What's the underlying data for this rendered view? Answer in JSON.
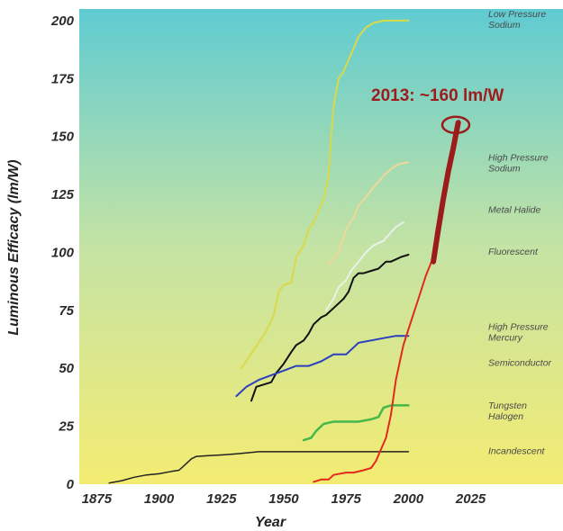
{
  "chart_data": {
    "type": "line",
    "xlabel": "Year",
    "ylabel": "Luminous Efficacy (lm/W)",
    "xlim": [
      1868,
      2062
    ],
    "ylim": [
      0,
      205
    ],
    "x_ticks": [
      1875,
      1900,
      1925,
      1950,
      1975,
      2000,
      2025
    ],
    "y_ticks": [
      0,
      25,
      50,
      75,
      100,
      125,
      150,
      175,
      200
    ],
    "background": {
      "type": "vertical-gradient",
      "top": "#5fcbd2",
      "middle": "#c4e3a4",
      "bottom": "#f4ec72"
    },
    "labels": [
      {
        "text": [
          "Low Pressure",
          "Sodium"
        ],
        "y": 200
      },
      {
        "text": [
          "High Pressure",
          "Sodium"
        ],
        "y": 138
      },
      {
        "text": [
          "Metal Halide"
        ],
        "y": 117
      },
      {
        "text": [
          "Fluorescent"
        ],
        "y": 99
      },
      {
        "text": [
          "High Pressure",
          "Mercury"
        ],
        "y": 65
      },
      {
        "text": [
          "Semiconductor"
        ],
        "y": 51
      },
      {
        "text": [
          "Tungsten",
          "Halogen"
        ],
        "y": 31
      },
      {
        "text": [
          "Incandescent"
        ],
        "y": 13
      }
    ],
    "series": [
      {
        "color": "#d9d94a",
        "width": 2,
        "x": [
          1933,
          1938,
          1943,
          1946,
          1948,
          1950,
          1953,
          1955,
          1958,
          1960,
          1962,
          1964,
          1966,
          1968,
          1969,
          1970,
          1972,
          1974,
          1976,
          1978,
          1980,
          1983,
          1986,
          1990,
          1995,
          2000
        ],
        "values": [
          50,
          58,
          66,
          73,
          83,
          86,
          87,
          98,
          103,
          110,
          113,
          118,
          123,
          133,
          150,
          163,
          175,
          178,
          183,
          188,
          193,
          197,
          199,
          200,
          200,
          200
        ]
      },
      {
        "color": "#efd999",
        "width": 2,
        "x": [
          1968,
          1972,
          1975,
          1978,
          1980,
          1983,
          1986,
          1990,
          1993,
          1996,
          2000
        ],
        "values": [
          95,
          100,
          110,
          115,
          120,
          124,
          128,
          133,
          136,
          138,
          139
        ]
      },
      {
        "color": "#e8f1ea",
        "width": 2,
        "x": [
          1967,
          1970,
          1972,
          1975,
          1977,
          1980,
          1983,
          1986,
          1990,
          1995,
          1998
        ],
        "values": [
          75,
          80,
          85,
          88,
          92,
          96,
          100,
          103,
          105,
          111,
          113
        ]
      },
      {
        "color": "#111111",
        "width": 2,
        "x": [
          1937,
          1939,
          1945,
          1947,
          1950,
          1953,
          1955,
          1958,
          1960,
          1962,
          1965,
          1967,
          1970,
          1972,
          1974,
          1976,
          1978,
          1980,
          1982,
          1985,
          1988,
          1991,
          1993,
          1995,
          1997,
          2000
        ],
        "values": [
          36,
          42,
          44,
          48,
          52,
          57,
          60,
          62,
          65,
          69,
          72,
          73,
          76,
          78,
          80,
          83,
          89,
          91,
          91,
          92,
          93,
          96,
          96,
          97,
          98,
          99
        ]
      },
      {
        "color": "#2b3fbf",
        "width": 2,
        "x": [
          1931,
          1935,
          1940,
          1945,
          1950,
          1955,
          1960,
          1965,
          1970,
          1975,
          1980,
          1985,
          1990,
          1995,
          2000
        ],
        "values": [
          38,
          42,
          45,
          47,
          49,
          51,
          51,
          53,
          56,
          56,
          61,
          62,
          63,
          64,
          64
        ]
      },
      {
        "color": "#46b84a",
        "width": 2.5,
        "x": [
          1958,
          1961,
          1963,
          1966,
          1970,
          1975,
          1980,
          1985,
          1988,
          1990,
          1993,
          1995,
          2000
        ],
        "values": [
          19,
          20,
          23,
          26,
          27,
          27,
          27,
          28,
          29,
          33,
          34,
          34,
          34
        ]
      },
      {
        "color": "#222222",
        "width": 1.5,
        "x": [
          1880,
          1885,
          1890,
          1895,
          1900,
          1905,
          1908,
          1910,
          1913,
          1915,
          1920,
          1925,
          1930,
          1935,
          1940,
          1950,
          1960,
          1970,
          1980,
          1990,
          2000
        ],
        "values": [
          0.5,
          1.5,
          3,
          4,
          4.5,
          5.5,
          6,
          8,
          11,
          12,
          12.3,
          12.6,
          13,
          13.5,
          14,
          14,
          14,
          14,
          14,
          14,
          14
        ]
      },
      {
        "color": "#e22a1c",
        "width": 2,
        "x": [
          1962,
          1965,
          1968,
          1970,
          1975,
          1978,
          1982,
          1985,
          1987,
          1989,
          1991,
          1993,
          1995,
          1998,
          2001,
          2004,
          2007,
          2010
        ],
        "values": [
          1,
          2,
          2,
          4,
          5,
          5,
          6,
          7,
          10,
          15,
          20,
          30,
          45,
          60,
          70,
          80,
          90,
          98
        ]
      },
      {
        "color": "#9c1b1b",
        "width": 6,
        "x": [
          2010,
          2012,
          2014,
          2016,
          2018,
          2020
        ],
        "values": [
          96,
          110,
          123,
          135,
          145,
          156
        ]
      }
    ],
    "annotation": {
      "text": "2013: ~160 lm/W",
      "x": 2019,
      "y": 155,
      "color": "#9c1c1c"
    }
  }
}
